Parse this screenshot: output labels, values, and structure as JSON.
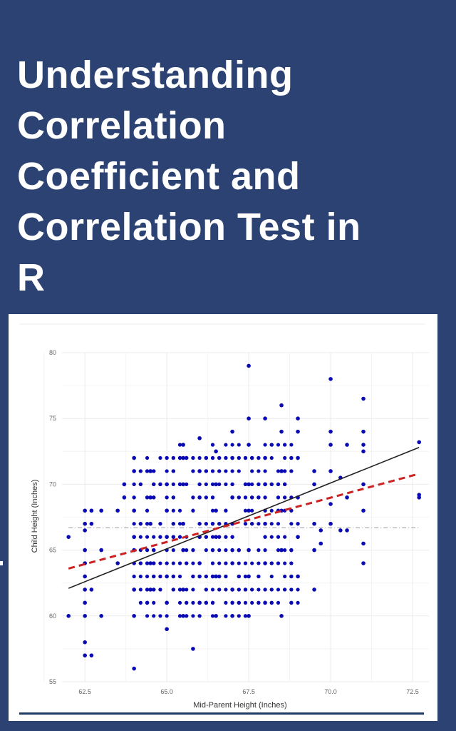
{
  "title": {
    "lines": [
      "Understanding",
      "Correlation",
      "Coefficient and",
      "Correlation Test in",
      "R"
    ]
  },
  "colors": {
    "background": "#2b4273",
    "title_text": "#ffffff",
    "points": "#0a0ab4",
    "regression_line": "#222222",
    "red_dashed_line": "#cc2222",
    "mean_line": "#999999",
    "bottom_rule": "#223a66"
  },
  "chart_data": {
    "type": "scatter",
    "title": "",
    "xlabel": "Mid-Parent Height (Inches)",
    "ylabel": "Child Height (Inches)",
    "xlim": [
      61.8,
      73.0
    ],
    "ylim": [
      55,
      80
    ],
    "x_ticks": [
      "62.5",
      "65.0",
      "67.5",
      "70.0",
      "72.5"
    ],
    "y_ticks": [
      "55",
      "60",
      "65",
      "70",
      "75",
      "80"
    ],
    "grid": true,
    "legend": null,
    "lines": [
      {
        "name": "regression (solid black)",
        "x": [
          62.0,
          72.7
        ],
        "y": [
          62.1,
          72.8
        ]
      },
      {
        "name": "dashed red",
        "x": [
          62.0,
          72.7
        ],
        "y": [
          63.6,
          70.8
        ]
      },
      {
        "name": "mean child height (dot-dash)",
        "x": [
          62.0,
          72.7
        ],
        "y": [
          66.7,
          66.7
        ]
      }
    ],
    "points_sample": [
      [
        62.0,
        66.0
      ],
      [
        62.0,
        60.0
      ],
      [
        62.5,
        68.0
      ],
      [
        62.5,
        67.0
      ],
      [
        62.5,
        66.5
      ],
      [
        62.5,
        65.0
      ],
      [
        62.5,
        64.0
      ],
      [
        62.5,
        63.0
      ],
      [
        62.5,
        62.0
      ],
      [
        62.5,
        61.0
      ],
      [
        62.5,
        60.0
      ],
      [
        62.5,
        58.0
      ],
      [
        62.5,
        57.0
      ],
      [
        62.7,
        68.0
      ],
      [
        62.7,
        67.0
      ],
      [
        62.7,
        62.0
      ],
      [
        62.7,
        57.0
      ],
      [
        63.0,
        68.0
      ],
      [
        63.0,
        65.0
      ],
      [
        63.0,
        60.0
      ],
      [
        63.5,
        68.0
      ],
      [
        63.5,
        64.0
      ],
      [
        63.7,
        70.0
      ],
      [
        63.7,
        69.0
      ],
      [
        64.0,
        72.0
      ],
      [
        64.0,
        71.0
      ],
      [
        64.0,
        68.0
      ],
      [
        64.0,
        66.0
      ],
      [
        64.0,
        65.0
      ],
      [
        64.0,
        62.0
      ],
      [
        64.0,
        60.0
      ],
      [
        64.0,
        56.0
      ],
      [
        64.5,
        71.0
      ],
      [
        64.5,
        69.0
      ],
      [
        64.5,
        67.0
      ],
      [
        64.5,
        64.0
      ],
      [
        64.5,
        62.0
      ],
      [
        65.0,
        70.0
      ],
      [
        65.0,
        68.0
      ],
      [
        65.0,
        66.0
      ],
      [
        65.0,
        63.0
      ],
      [
        65.0,
        61.0
      ],
      [
        65.0,
        59.0
      ],
      [
        65.5,
        73.0
      ],
      [
        65.5,
        72.0
      ],
      [
        65.5,
        70.0
      ],
      [
        65.5,
        67.0
      ],
      [
        65.5,
        65.0
      ],
      [
        65.5,
        62.0
      ],
      [
        65.5,
        60.0
      ],
      [
        65.8,
        57.5
      ],
      [
        66.0,
        73.5
      ],
      [
        66.0,
        71.0
      ],
      [
        66.0,
        69.0
      ],
      [
        66.0,
        66.0
      ],
      [
        66.0,
        64.0
      ],
      [
        66.0,
        61.0
      ],
      [
        66.5,
        72.5
      ],
      [
        66.5,
        70.0
      ],
      [
        66.5,
        68.0
      ],
      [
        66.5,
        66.0
      ],
      [
        66.5,
        63.0
      ],
      [
        66.5,
        60.0
      ],
      [
        67.0,
        74.0
      ],
      [
        67.0,
        72.0
      ],
      [
        67.0,
        69.0
      ],
      [
        67.0,
        67.0
      ],
      [
        67.0,
        64.0
      ],
      [
        67.0,
        62.0
      ],
      [
        67.0,
        60.0
      ],
      [
        67.5,
        79.0
      ],
      [
        67.5,
        75.0
      ],
      [
        67.5,
        73.0
      ],
      [
        67.5,
        70.0
      ],
      [
        67.5,
        68.0
      ],
      [
        67.5,
        65.0
      ],
      [
        67.5,
        63.0
      ],
      [
        67.5,
        60.0
      ],
      [
        68.0,
        75.0
      ],
      [
        68.0,
        72.0
      ],
      [
        68.0,
        70.0
      ],
      [
        68.0,
        67.0
      ],
      [
        68.0,
        64.0
      ],
      [
        68.0,
        61.0
      ],
      [
        68.5,
        76.0
      ],
      [
        68.5,
        74.0
      ],
      [
        68.5,
        71.0
      ],
      [
        68.5,
        68.0
      ],
      [
        68.5,
        65.0
      ],
      [
        68.5,
        60.0
      ],
      [
        69.0,
        75.0
      ],
      [
        69.0,
        74.0
      ],
      [
        69.0,
        72.0
      ],
      [
        69.0,
        69.0
      ],
      [
        69.0,
        66.0
      ],
      [
        69.0,
        63.0
      ],
      [
        69.5,
        71.0
      ],
      [
        69.5,
        70.0
      ],
      [
        69.5,
        67.0
      ],
      [
        69.5,
        65.0
      ],
      [
        69.5,
        62.0
      ],
      [
        69.7,
        66.5
      ],
      [
        69.7,
        65.5
      ],
      [
        70.0,
        78.0
      ],
      [
        70.0,
        74.0
      ],
      [
        70.0,
        73.0
      ],
      [
        70.0,
        71.0
      ],
      [
        70.0,
        68.5
      ],
      [
        70.0,
        67.0
      ],
      [
        70.3,
        70.5
      ],
      [
        70.3,
        66.5
      ],
      [
        70.5,
        73.0
      ],
      [
        70.5,
        69.0
      ],
      [
        70.5,
        66.5
      ],
      [
        71.0,
        76.5
      ],
      [
        71.0,
        74.0
      ],
      [
        71.0,
        73.0
      ],
      [
        71.0,
        72.5
      ],
      [
        71.0,
        70.0
      ],
      [
        71.0,
        68.0
      ],
      [
        71.0,
        65.5
      ],
      [
        71.0,
        64.0
      ],
      [
        72.7,
        73.2
      ],
      [
        72.7,
        69.2
      ],
      [
        72.7,
        69.0
      ]
    ]
  }
}
